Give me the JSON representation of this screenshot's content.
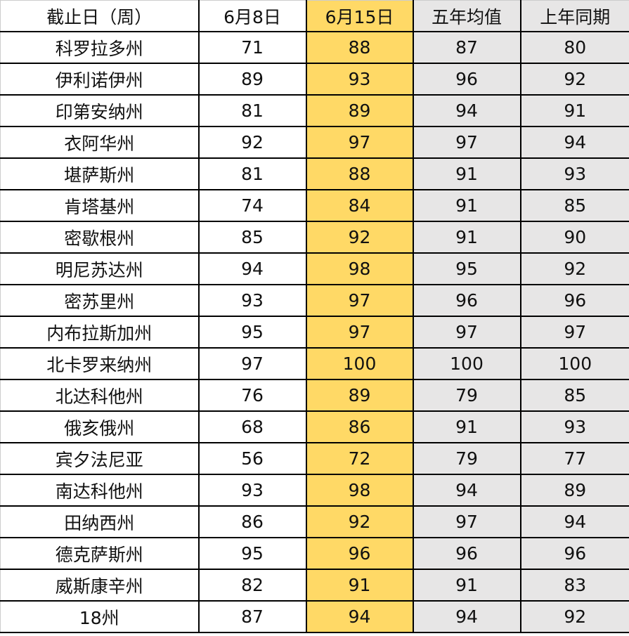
{
  "colors": {
    "highlight": "#FFD966",
    "shaded": "#E7E6E6"
  },
  "chart_data": {
    "type": "table",
    "columns": [
      "截止日（周）",
      "6月8日",
      "6月15日",
      "五年均值",
      "上年同期"
    ],
    "rows": [
      [
        "科罗拉多州",
        "71",
        "88",
        "87",
        "80"
      ],
      [
        "伊利诺伊州",
        "89",
        "93",
        "96",
        "92"
      ],
      [
        "印第安纳州",
        "81",
        "89",
        "94",
        "91"
      ],
      [
        "衣阿华州",
        "92",
        "97",
        "97",
        "94"
      ],
      [
        "堪萨斯州",
        "81",
        "88",
        "91",
        "93"
      ],
      [
        "肯塔基州",
        "74",
        "84",
        "91",
        "85"
      ],
      [
        "密歇根州",
        "85",
        "92",
        "91",
        "90"
      ],
      [
        "明尼苏达州",
        "94",
        "98",
        "95",
        "92"
      ],
      [
        "密苏里州",
        "93",
        "97",
        "96",
        "96"
      ],
      [
        "内布拉斯加州",
        "95",
        "97",
        "97",
        "97"
      ],
      [
        "北卡罗来纳州",
        "97",
        "100",
        "100",
        "100"
      ],
      [
        "北达科他州",
        "76",
        "89",
        "79",
        "85"
      ],
      [
        "俄亥俄州",
        "68",
        "86",
        "91",
        "93"
      ],
      [
        "宾夕法尼亚",
        "56",
        "72",
        "79",
        "77"
      ],
      [
        "南达科他州",
        "93",
        "98",
        "94",
        "89"
      ],
      [
        "田纳西州",
        "86",
        "92",
        "97",
        "94"
      ],
      [
        "德克萨斯州",
        "95",
        "96",
        "96",
        "96"
      ],
      [
        "威斯康辛州",
        "82",
        "91",
        "91",
        "83"
      ],
      [
        "18州",
        "87",
        "94",
        "94",
        "92"
      ]
    ]
  }
}
